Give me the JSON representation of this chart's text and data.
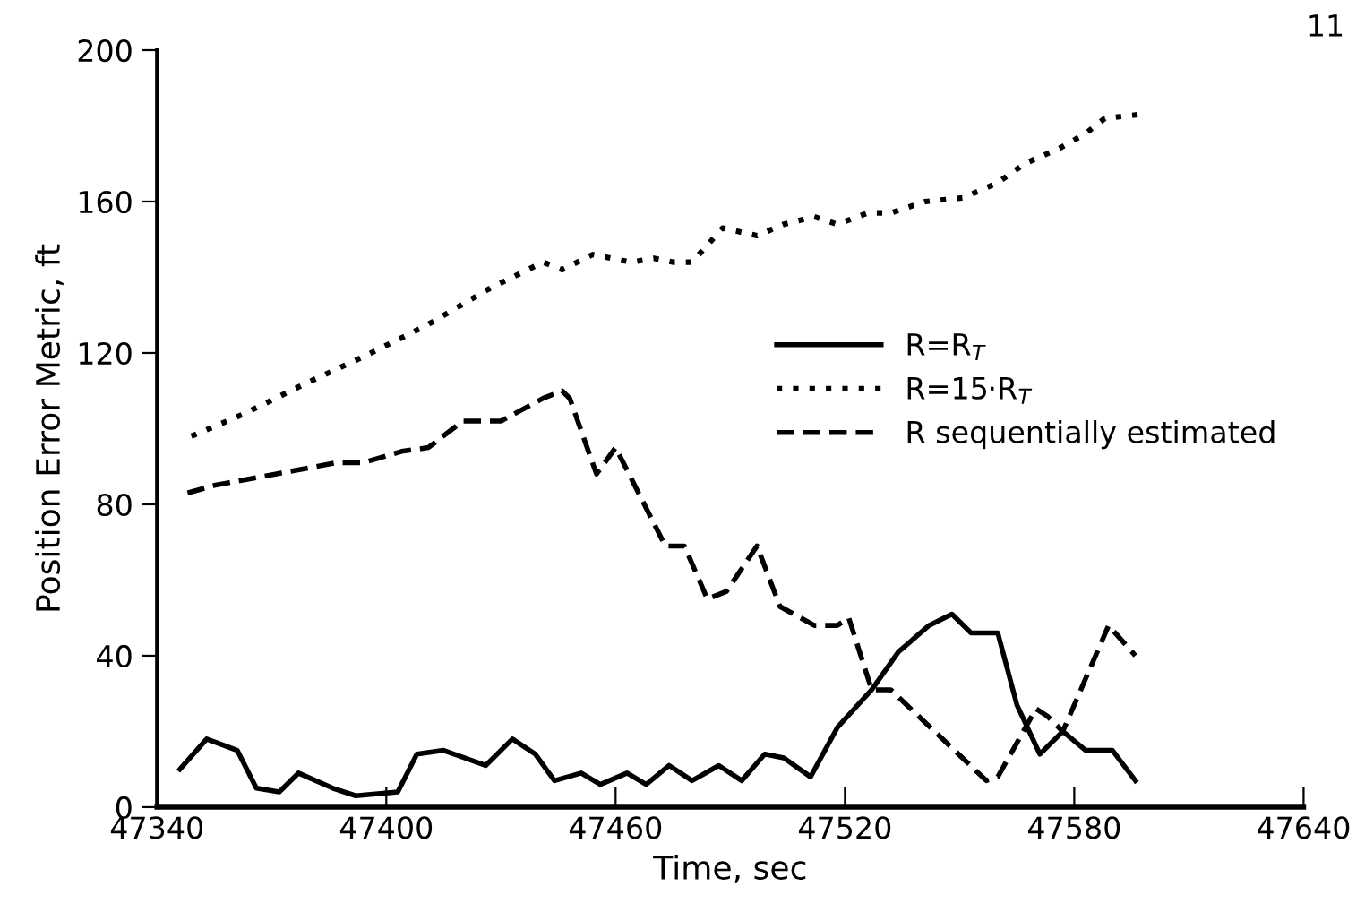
{
  "chart_data": {
    "type": "line",
    "xlabel": "Time, sec",
    "ylabel": "Position Error Metric, ft",
    "xlim": [
      47340,
      47640
    ],
    "xticks": [
      47340,
      47400,
      47460,
      47520,
      47580,
      47640
    ],
    "ylim": [
      0,
      200
    ],
    "yticks": [
      0,
      40,
      80,
      120,
      160,
      200
    ],
    "grid": false,
    "legend": "center right",
    "marker": "none",
    "annotations": [
      "11"
    ],
    "series": [
      {
        "name": "R=R$_{T}$",
        "color": "#000000",
        "line_style": "solid",
        "x": [
          47346,
          47353,
          47361,
          47366,
          47372,
          47377,
          47386,
          47392,
          47403,
          47408,
          47415,
          47426,
          47433,
          47439,
          47444,
          47451,
          47456,
          47463,
          47468,
          47474,
          47480,
          47487,
          47493,
          47499,
          47504,
          47511,
          47518,
          47527,
          47534,
          47542,
          47548,
          47553,
          47560,
          47565,
          47571,
          47577,
          47583,
          47590,
          47596
        ],
        "values": [
          10,
          18,
          15,
          5,
          4,
          9,
          5,
          3,
          4,
          14,
          15,
          11,
          18,
          14,
          7,
          9,
          6,
          9,
          6,
          11,
          7,
          11,
          7,
          14,
          13,
          8,
          21,
          31,
          41,
          48,
          51,
          46,
          46,
          27,
          14,
          20,
          15,
          15,
          7
        ]
      },
      {
        "name": "R=15·R$_{T}$",
        "color": "#000000",
        "line_style": "dotted",
        "x": [
          47349,
          47363,
          47379,
          47394,
          47410,
          47427,
          47441,
          47446,
          47454,
          47464,
          47470,
          47475,
          47480,
          47488,
          47497,
          47504,
          47512,
          47518,
          47526,
          47532,
          47541,
          47551,
          47560,
          47567,
          47576,
          47583,
          47588,
          47597
        ],
        "values": [
          98,
          104,
          112,
          119,
          127,
          137,
          144,
          142,
          146,
          144,
          145,
          144,
          144,
          153,
          151,
          154,
          156,
          154,
          157,
          157,
          160,
          161,
          165,
          170,
          174,
          178,
          182,
          183
        ]
      },
      {
        "name": "R sequentially estimated",
        "color": "#000000",
        "line_style": "dashed",
        "x": [
          47348,
          47355,
          47371,
          47387,
          47394,
          47404,
          47411,
          47420,
          47430,
          47441,
          47446,
          47448,
          47455,
          47460,
          47467,
          47473,
          47478,
          47484,
          47489,
          47497,
          47503,
          47512,
          47518,
          47521,
          47527,
          47532,
          47557,
          47560,
          47570,
          47573,
          47577,
          47589,
          47596
        ],
        "values": [
          83,
          85,
          88,
          91,
          91,
          94,
          95,
          102,
          102,
          108,
          110,
          108,
          88,
          95,
          81,
          69,
          69,
          55,
          57,
          69,
          53,
          48,
          48,
          50,
          31,
          31,
          7,
          8,
          26,
          24,
          20,
          48,
          40
        ]
      }
    ]
  }
}
